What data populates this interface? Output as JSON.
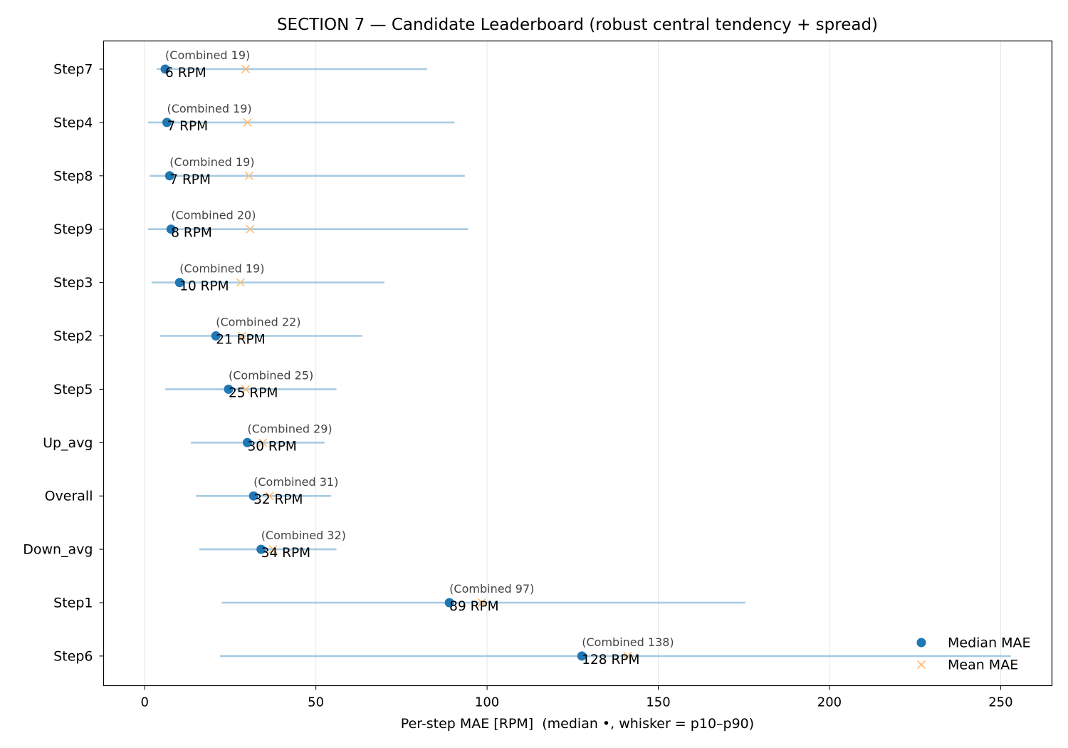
{
  "chart_data": {
    "type": "scatter",
    "title": "SECTION 7 — Candidate Leaderboard (robust central tendency + spread)",
    "xlabel": "Per-step MAE [RPM]  (median •, whisker = p10–p90)",
    "ylabel": "",
    "xlim": [
      -12,
      265
    ],
    "xticks": [
      0,
      50,
      100,
      150,
      200,
      250
    ],
    "grid": "x",
    "legend_position": "bottom-right",
    "legend": [
      {
        "name": "Median MAE",
        "marker": "circle",
        "color": "#1f77b4"
      },
      {
        "name": "Mean MAE",
        "marker": "x",
        "color": "#ffbb78"
      }
    ],
    "whisker_color": "#a6cbe3",
    "categories": [
      "Step7",
      "Step4",
      "Step8",
      "Step9",
      "Step3",
      "Step2",
      "Step5",
      "Up_avg",
      "Overall",
      "Down_avg",
      "Step1",
      "Step6"
    ],
    "rows": [
      {
        "category": "Step7",
        "median": 6.0,
        "mean": 29.5,
        "p10": 3.5,
        "p90": 82.5,
        "value_label": "6 RPM",
        "combined_label": "(Combined 19)"
      },
      {
        "category": "Step4",
        "median": 6.5,
        "mean": 30.0,
        "p10": 1.0,
        "p90": 90.5,
        "value_label": "7 RPM",
        "combined_label": "(Combined 19)"
      },
      {
        "category": "Step8",
        "median": 7.3,
        "mean": 30.5,
        "p10": 1.5,
        "p90": 93.5,
        "value_label": "7 RPM",
        "combined_label": "(Combined 19)"
      },
      {
        "category": "Step9",
        "median": 7.7,
        "mean": 30.8,
        "p10": 1.0,
        "p90": 94.5,
        "value_label": "8 RPM",
        "combined_label": "(Combined 20)"
      },
      {
        "category": "Step3",
        "median": 10.2,
        "mean": 28.0,
        "p10": 2.0,
        "p90": 70.0,
        "value_label": "10 RPM",
        "combined_label": "(Combined 19)"
      },
      {
        "category": "Step2",
        "median": 20.8,
        "mean": 28.5,
        "p10": 4.5,
        "p90": 63.5,
        "value_label": "21 RPM",
        "combined_label": "(Combined 22)"
      },
      {
        "category": "Step5",
        "median": 24.5,
        "mean": 29.5,
        "p10": 6.0,
        "p90": 56.0,
        "value_label": "25 RPM",
        "combined_label": "(Combined 25)"
      },
      {
        "category": "Up_avg",
        "median": 30.0,
        "mean": 34.5,
        "p10": 13.5,
        "p90": 52.5,
        "value_label": "30 RPM",
        "combined_label": "(Combined 29)"
      },
      {
        "category": "Overall",
        "median": 31.8,
        "mean": 36.5,
        "p10": 15.0,
        "p90": 54.5,
        "value_label": "32 RPM",
        "combined_label": "(Combined 31)"
      },
      {
        "category": "Down_avg",
        "median": 34.0,
        "mean": 37.5,
        "p10": 16.0,
        "p90": 56.0,
        "value_label": "34 RPM",
        "combined_label": "(Combined 32)"
      },
      {
        "category": "Step1",
        "median": 89.0,
        "mean": 98.5,
        "p10": 22.5,
        "p90": 175.5,
        "value_label": "89 RPM",
        "combined_label": "(Combined 97)"
      },
      {
        "category": "Step6",
        "median": 127.7,
        "mean": 141.0,
        "p10": 22.0,
        "p90": 253.0,
        "value_label": "128 RPM",
        "combined_label": "(Combined 138)"
      }
    ]
  }
}
